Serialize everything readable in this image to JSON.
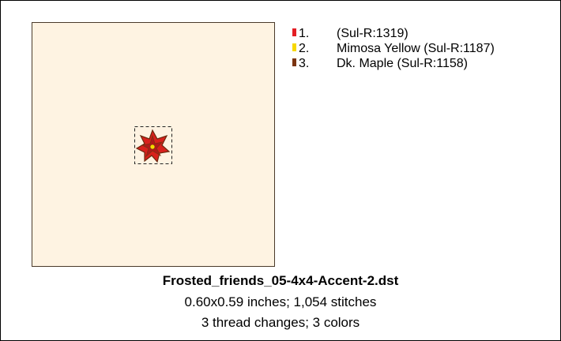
{
  "threads": [
    {
      "number": "1.",
      "text": "(Sul-R:1319)",
      "color": "#e31e24"
    },
    {
      "number": "2.",
      "text": "Mimosa Yellow (Sul-R:1187)",
      "color": "#f7d800"
    },
    {
      "number": "3.",
      "text": "Dk. Maple (Sul-R:1158)",
      "color": "#7b3411"
    }
  ],
  "design": {
    "filename": "Frosted_friends_05-4x4-Accent-2.dst",
    "size_line": "0.60x0.59 inches; 1,054 stitches",
    "changes_line": "3 thread changes; 3 colors"
  }
}
